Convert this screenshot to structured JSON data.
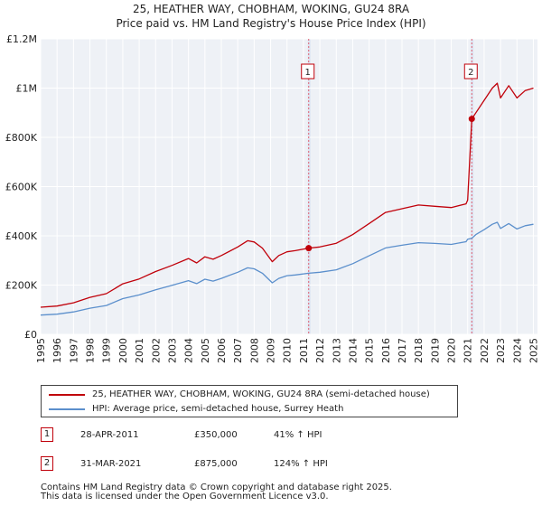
{
  "chart_data": {
    "type": "line",
    "title": "25, HEATHER WAY, CHOBHAM, WOKING, GU24 8RA",
    "subtitle": "Price paid vs. HM Land Registry's House Price Index (HPI)",
    "xlim": [
      1995,
      2025.25
    ],
    "ylim": [
      0,
      1200000
    ],
    "y_ticks": [
      {
        "value": 0,
        "label": "£0"
      },
      {
        "value": 200000,
        "label": "£200K"
      },
      {
        "value": 400000,
        "label": "£400K"
      },
      {
        "value": 600000,
        "label": "£600K"
      },
      {
        "value": 800000,
        "label": "£800K"
      },
      {
        "value": 1000000,
        "label": "£1M"
      },
      {
        "value": 1200000,
        "label": "£1.2M"
      }
    ],
    "x_ticks": [
      "1995",
      "1996",
      "1997",
      "1998",
      "1999",
      "2000",
      "2001",
      "2002",
      "2003",
      "2004",
      "2005",
      "2006",
      "2007",
      "2008",
      "2009",
      "2010",
      "2011",
      "2012",
      "2013",
      "2014",
      "2015",
      "2016",
      "2017",
      "2018",
      "2019",
      "2020",
      "2021",
      "2022",
      "2023",
      "2024",
      "2025"
    ],
    "grid": true,
    "series": [
      {
        "name": "25, HEATHER WAY, CHOBHAM, WOKING, GU24 8RA (semi-detached house)",
        "color": "#c0000a",
        "x": [
          1995,
          1996,
          1997,
          1998,
          1999,
          2000,
          2001,
          2002,
          2003,
          2004,
          2004.5,
          2005,
          2005.5,
          2006,
          2007,
          2007.6,
          2008,
          2008.5,
          2009.1,
          2009.5,
          2010,
          2010.5,
          2011.32,
          2012,
          2013,
          2014,
          2015,
          2016,
          2017,
          2018,
          2019,
          2020,
          2020.9,
          2021,
          2021.25,
          2021.5,
          2022,
          2022.5,
          2022.8,
          2023,
          2023.5,
          2024,
          2024.5,
          2025
        ],
        "values": [
          110000,
          115000,
          128000,
          150000,
          165000,
          205000,
          225000,
          255000,
          280000,
          308000,
          290000,
          315000,
          305000,
          320000,
          355000,
          380000,
          375000,
          350000,
          295000,
          320000,
          335000,
          340000,
          350000,
          355000,
          370000,
          405000,
          450000,
          495000,
          510000,
          525000,
          520000,
          515000,
          530000,
          545000,
          875000,
          900000,
          950000,
          1000000,
          1020000,
          960000,
          1010000,
          960000,
          990000,
          1000000
        ]
      },
      {
        "name": "HPI: Average price, semi-detached house, Surrey Heath",
        "color": "#5b8fcc",
        "x": [
          1995,
          1996,
          1997,
          1998,
          1999,
          2000,
          2001,
          2002,
          2003,
          2004,
          2004.5,
          2005,
          2005.5,
          2006,
          2007,
          2007.6,
          2008,
          2008.5,
          2009.1,
          2009.5,
          2010,
          2010.5,
          2011.32,
          2012,
          2013,
          2014,
          2015,
          2016,
          2017,
          2018,
          2019,
          2020,
          2020.9,
          2021,
          2021.25,
          2021.5,
          2022,
          2022.5,
          2022.8,
          2023,
          2023.5,
          2024,
          2024.5,
          2025
        ],
        "values": [
          78000,
          82000,
          91000,
          106000,
          117000,
          145000,
          160000,
          181000,
          199000,
          218000,
          206000,
          224000,
          216000,
          227000,
          252000,
          270000,
          266000,
          248000,
          209000,
          227000,
          238000,
          241000,
          248000,
          252000,
          262000,
          287000,
          319000,
          351000,
          362000,
          372000,
          369000,
          365000,
          376000,
          386000,
          390000,
          405000,
          425000,
          447000,
          455000,
          430000,
          450000,
          428000,
          441000,
          447000
        ]
      }
    ],
    "annotations": [
      {
        "label": "1",
        "x": 2011.32,
        "y": 350000
      },
      {
        "label": "2",
        "x": 2021.25,
        "y": 875000
      }
    ],
    "shaded_periods": [
      [
        2011.32,
        2011.32
      ],
      [
        2021.25,
        2021.25
      ]
    ],
    "legend_position": "bottom"
  },
  "legend": {
    "items": [
      "25, HEATHER WAY, CHOBHAM, WOKING, GU24 8RA (semi-detached house)",
      "HPI: Average price, semi-detached house, Surrey Heath"
    ]
  },
  "transactions": [
    {
      "num": "1",
      "date": "28-APR-2011",
      "price": "£350,000",
      "hpi": "41% ↑ HPI"
    },
    {
      "num": "2",
      "date": "31-MAR-2021",
      "price": "£875,000",
      "hpi": "124% ↑ HPI"
    }
  ],
  "footer": {
    "line1": "Contains HM Land Registry data © Crown copyright and database right 2025.",
    "line2": "This data is licensed under the Open Government Licence v3.0."
  },
  "colors": {
    "red": "#c0000a",
    "blue": "#5b8fcc",
    "plot_bg": "#eef1f6"
  }
}
